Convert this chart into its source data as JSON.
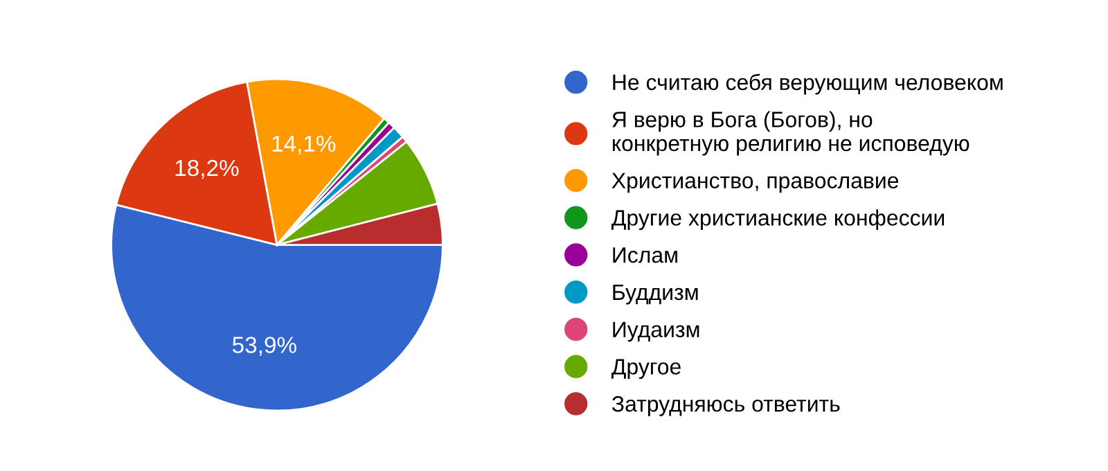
{
  "chart_data": {
    "type": "pie",
    "categories": [
      "Не считаю себя верующим человеком",
      "Я верю в Бога (Богов), но конкретную религию не исповедую",
      "Христианство, православие",
      "Другие христианские конфессии",
      "Ислам",
      "Буддизм",
      "Иудаизм",
      "Другое",
      "Затрудняюсь ответить"
    ],
    "values": [
      53.9,
      18.2,
      14.1,
      0.6,
      0.7,
      1.2,
      0.6,
      6.7,
      4.0
    ],
    "colors": [
      "#3366cc",
      "#dc3912",
      "#ff9900",
      "#109618",
      "#990099",
      "#0099c6",
      "#dd4477",
      "#66aa00",
      "#b82e2e"
    ],
    "value_labels": [
      "53,9%",
      "18,2%",
      "14,1%",
      null,
      null,
      null,
      null,
      null,
      null
    ],
    "legend": "right"
  }
}
